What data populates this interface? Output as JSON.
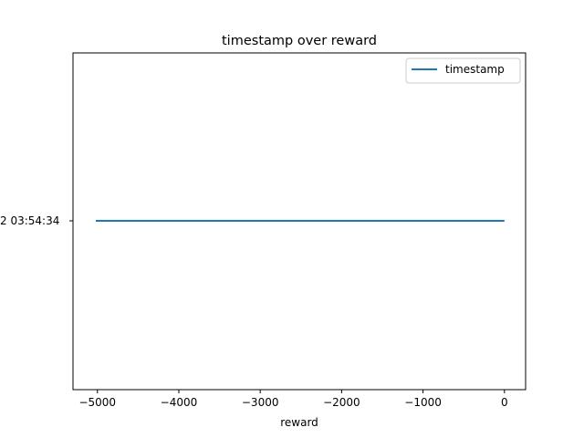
{
  "chart_data": {
    "type": "line",
    "title": "timestamp over reward",
    "xlabel": "reward",
    "ylabel": "",
    "xlim": [
      -5300,
      260
    ],
    "x_ticks": [
      -5000,
      -4000,
      -3000,
      -2000,
      -1000,
      0
    ],
    "x_tick_labels": [
      "−5000",
      "−4000",
      "−3000",
      "−2000",
      "−1000",
      "0"
    ],
    "y_tick_label": "2 03:54:34",
    "series": [
      {
        "name": "timestamp",
        "color": "#1f77b4",
        "x": [
          -5020,
          0
        ],
        "y_label": "2 03:54:34"
      }
    ],
    "legend": {
      "placement": "top-right",
      "entries": [
        "timestamp"
      ]
    },
    "grid": false
  }
}
